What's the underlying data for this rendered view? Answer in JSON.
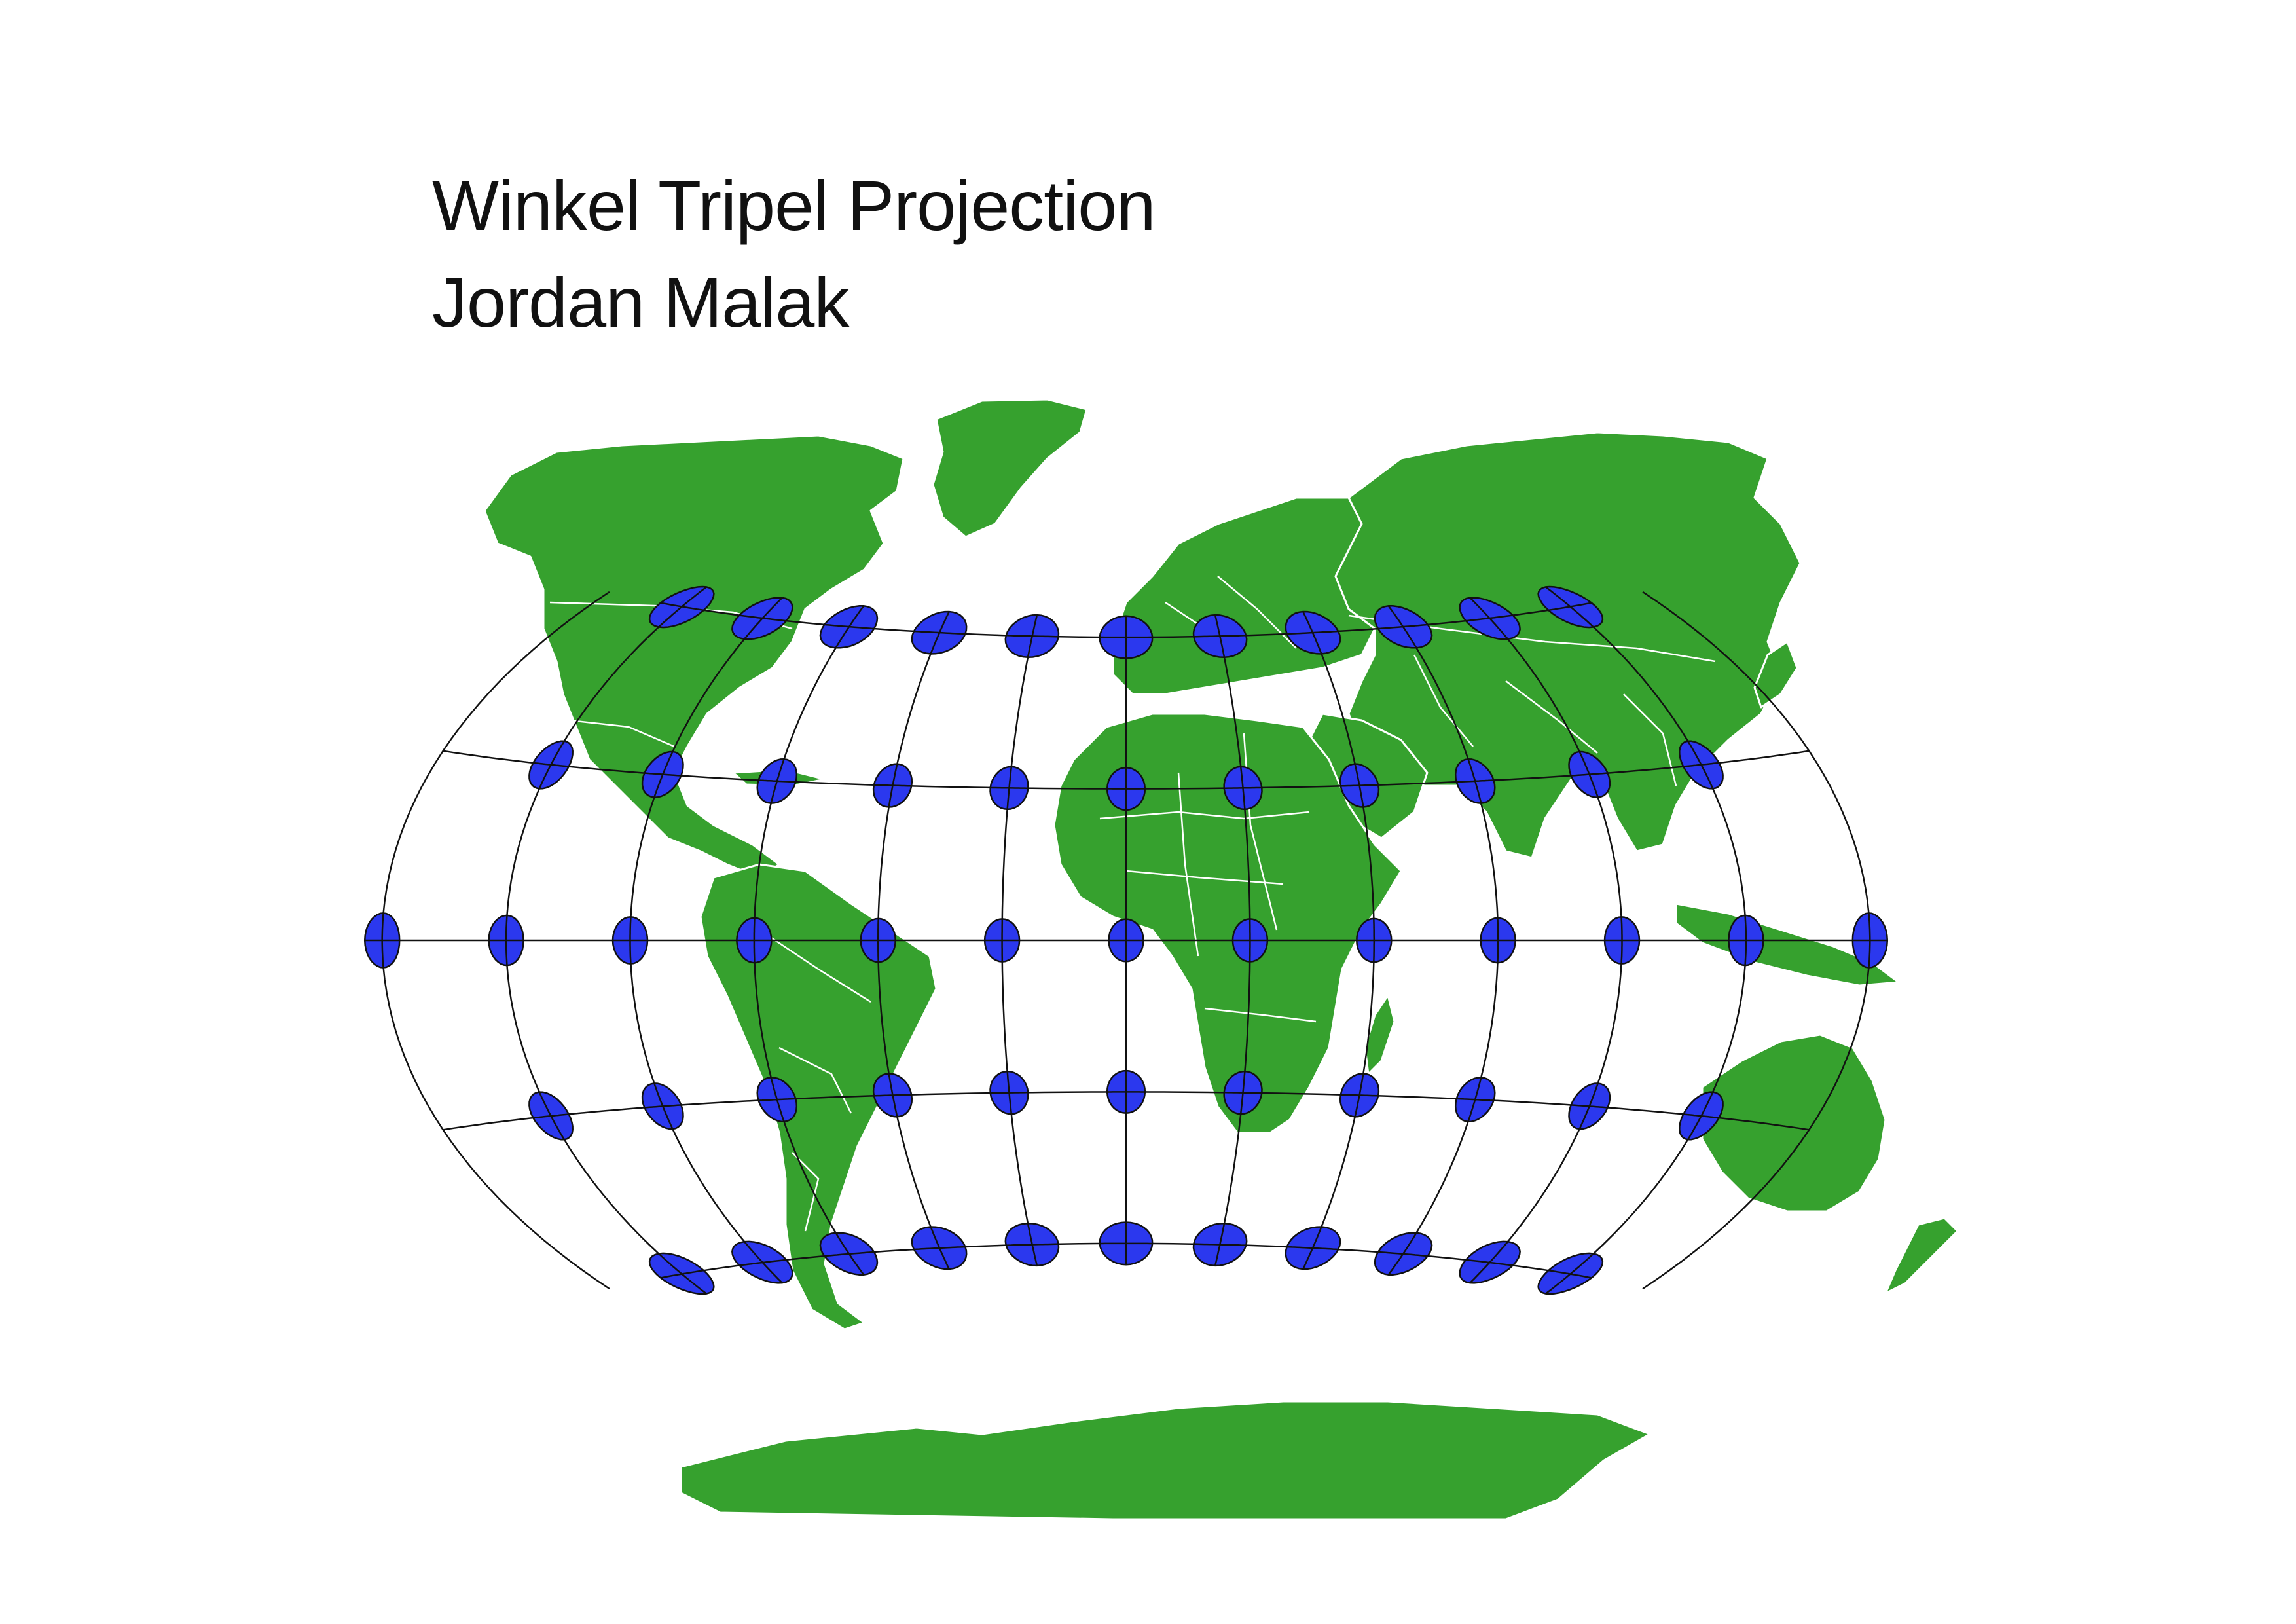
{
  "title": "Winkel Tripel Projection",
  "author": "Jordan Malak",
  "map": {
    "projection": "Winkel Tripel",
    "land_color": "#36a12e",
    "indicatrix_color": "#2b38ee",
    "graticule_color": "#111111",
    "background_color": "#ffffff",
    "graticule_longitudes": [
      -150,
      -120,
      -90,
      -60,
      -30,
      0,
      30,
      60,
      90,
      120,
      150
    ],
    "graticule_latitudes": [
      -60,
      -30,
      0,
      30,
      60
    ],
    "indicatrix_longitudes": [
      -150,
      -120,
      -90,
      -60,
      -30,
      0,
      30,
      60,
      90,
      120,
      150
    ],
    "indicatrix_latitudes": [
      -60,
      -30,
      0,
      30,
      60
    ],
    "equator_edge_longitudes": [
      -180,
      180
    ]
  }
}
